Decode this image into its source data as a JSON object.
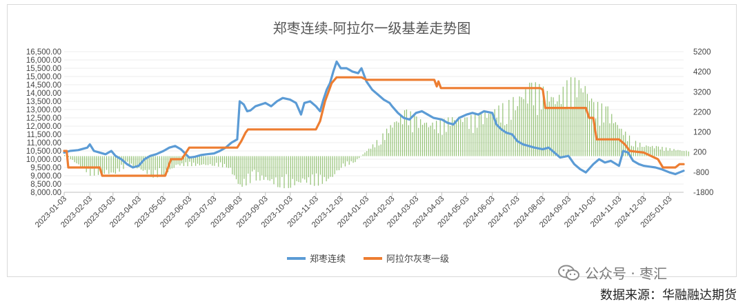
{
  "chart_data": {
    "type": "line+bar",
    "title": "郑枣连续-阿拉尔一级基差走势图",
    "left_axis": {
      "min": 8000,
      "max": 16500,
      "step": 500,
      "tick_labels": [
        "8,000.00",
        "8,500.00",
        "9,000.00",
        "9,500.00",
        "10,000.00",
        "10,500.00",
        "11,000.00",
        "11,500.00",
        "12,000.00",
        "12,500.00",
        "13,000.00",
        "13,500.00",
        "14,000.00",
        "14,500.00",
        "15,000.00",
        "15,500.00",
        "16,000.00",
        "16,500.00"
      ]
    },
    "right_axis": {
      "min": -1800,
      "max": 5200,
      "step": 1000,
      "tick_labels": [
        "-1800",
        "-800",
        "200",
        "1200",
        "2200",
        "3200",
        "4200",
        "5200"
      ]
    },
    "x_axis": {
      "start": "2023-01-03",
      "end": "2025-01-20",
      "tick_labels": [
        "2023-01-03",
        "2023-02-03",
        "2023-03-03",
        "2023-04-03",
        "2023-05-03",
        "2023-06-03",
        "2023-07-03",
        "2023-08-03",
        "2023-09-03",
        "2023-10-03",
        "2023-11-03",
        "2023-12-03",
        "2024-01-03",
        "2024-02-03",
        "2024-03-03",
        "2024-04-03",
        "2024-05-03",
        "2024-06-03",
        "2024-07-03",
        "2024-08-03",
        "2024-09-03",
        "2024-10-03",
        "2024-11-03",
        "2024-12-03",
        "2025-01-03"
      ]
    },
    "legend": {
      "position": "bottom",
      "entries": [
        "郑枣连续",
        "阿拉尔灰枣一级"
      ]
    },
    "series": [
      {
        "name": "郑枣连续",
        "axis": "left",
        "kind": "line",
        "color": "#5b9bd5",
        "points": [
          [
            "2023-01-03",
            10400
          ],
          [
            "2023-01-10",
            10500
          ],
          [
            "2023-01-20",
            10550
          ],
          [
            "2023-01-31",
            10700
          ],
          [
            "2023-02-03",
            10900
          ],
          [
            "2023-02-08",
            10500
          ],
          [
            "2023-02-15",
            10400
          ],
          [
            "2023-02-22",
            10300
          ],
          [
            "2023-03-01",
            10500
          ],
          [
            "2023-03-06",
            10200
          ],
          [
            "2023-03-13",
            10000
          ],
          [
            "2023-03-20",
            9700
          ],
          [
            "2023-03-27",
            9500
          ],
          [
            "2023-04-03",
            9600
          ],
          [
            "2023-04-10",
            10000
          ],
          [
            "2023-04-17",
            10200
          ],
          [
            "2023-04-24",
            10300
          ],
          [
            "2023-05-03",
            10500
          ],
          [
            "2023-05-10",
            10700
          ],
          [
            "2023-05-17",
            10800
          ],
          [
            "2023-05-24",
            10600
          ],
          [
            "2023-06-03",
            10100
          ],
          [
            "2023-06-10",
            10150
          ],
          [
            "2023-06-17",
            10250
          ],
          [
            "2023-06-24",
            10300
          ],
          [
            "2023-07-03",
            10350
          ],
          [
            "2023-07-10",
            10500
          ],
          [
            "2023-07-17",
            10700
          ],
          [
            "2023-07-24",
            11000
          ],
          [
            "2023-07-31",
            11200
          ],
          [
            "2023-08-03",
            13500
          ],
          [
            "2023-08-08",
            13300
          ],
          [
            "2023-08-12",
            12900
          ],
          [
            "2023-08-16",
            12950
          ],
          [
            "2023-08-22",
            13200
          ],
          [
            "2023-08-28",
            13300
          ],
          [
            "2023-09-03",
            13400
          ],
          [
            "2023-09-10",
            13200
          ],
          [
            "2023-09-17",
            13500
          ],
          [
            "2023-09-24",
            13700
          ],
          [
            "2023-10-03",
            13600
          ],
          [
            "2023-10-10",
            13400
          ],
          [
            "2023-10-16",
            12700
          ],
          [
            "2023-10-20",
            13400
          ],
          [
            "2023-10-27",
            13500
          ],
          [
            "2023-11-03",
            13200
          ],
          [
            "2023-11-08",
            12900
          ],
          [
            "2023-11-12",
            13600
          ],
          [
            "2023-11-16",
            14200
          ],
          [
            "2023-11-20",
            14600
          ],
          [
            "2023-11-24",
            15300
          ],
          [
            "2023-11-28",
            15900
          ],
          [
            "2023-12-03",
            15500
          ],
          [
            "2023-12-10",
            15500
          ],
          [
            "2023-12-17",
            15300
          ],
          [
            "2023-12-24",
            15200
          ],
          [
            "2023-12-28",
            15500
          ],
          [
            "2024-01-03",
            14700
          ],
          [
            "2024-01-10",
            14200
          ],
          [
            "2024-01-17",
            13900
          ],
          [
            "2024-01-24",
            13600
          ],
          [
            "2024-01-31",
            13400
          ],
          [
            "2024-02-03",
            13200
          ],
          [
            "2024-02-10",
            12800
          ],
          [
            "2024-02-17",
            12500
          ],
          [
            "2024-02-24",
            12400
          ],
          [
            "2024-03-03",
            12800
          ],
          [
            "2024-03-10",
            12900
          ],
          [
            "2024-03-17",
            12700
          ],
          [
            "2024-03-24",
            12500
          ],
          [
            "2024-04-03",
            12400
          ],
          [
            "2024-04-10",
            12200
          ],
          [
            "2024-04-17",
            12100
          ],
          [
            "2024-04-24",
            12500
          ],
          [
            "2024-05-03",
            12700
          ],
          [
            "2024-05-10",
            12800
          ],
          [
            "2024-05-17",
            12700
          ],
          [
            "2024-05-24",
            12900
          ],
          [
            "2024-06-03",
            12800
          ],
          [
            "2024-06-08",
            12100
          ],
          [
            "2024-06-14",
            11800
          ],
          [
            "2024-06-20",
            11600
          ],
          [
            "2024-06-27",
            11500
          ],
          [
            "2024-07-03",
            11100
          ],
          [
            "2024-07-10",
            10900
          ],
          [
            "2024-07-17",
            10800
          ],
          [
            "2024-07-24",
            10700
          ],
          [
            "2024-08-03",
            10600
          ],
          [
            "2024-08-10",
            10700
          ],
          [
            "2024-08-17",
            10400
          ],
          [
            "2024-08-24",
            10100
          ],
          [
            "2024-09-03",
            10200
          ],
          [
            "2024-09-10",
            9700
          ],
          [
            "2024-09-17",
            9400
          ],
          [
            "2024-09-24",
            9200
          ],
          [
            "2024-10-03",
            9700
          ],
          [
            "2024-10-10",
            10000
          ],
          [
            "2024-10-17",
            9800
          ],
          [
            "2024-10-24",
            9900
          ],
          [
            "2024-11-03",
            9600
          ],
          [
            "2024-11-08",
            10500
          ],
          [
            "2024-11-14",
            10400
          ],
          [
            "2024-11-20",
            9900
          ],
          [
            "2024-11-27",
            9700
          ],
          [
            "2024-12-03",
            9600
          ],
          [
            "2024-12-10",
            9550
          ],
          [
            "2024-12-17",
            9500
          ],
          [
            "2024-12-24",
            9400
          ],
          [
            "2025-01-03",
            9200
          ],
          [
            "2025-01-10",
            9100
          ],
          [
            "2025-01-15",
            9200
          ],
          [
            "2025-01-20",
            9300
          ]
        ]
      },
      {
        "name": "阿拉尔灰枣一级",
        "axis": "left",
        "kind": "line",
        "color": "#ed7d31",
        "points": [
          [
            "2023-01-03",
            10500
          ],
          [
            "2023-01-06",
            10500
          ],
          [
            "2023-01-08",
            9500
          ],
          [
            "2023-02-15",
            9500
          ],
          [
            "2023-02-18",
            9000
          ],
          [
            "2023-05-05",
            9000
          ],
          [
            "2023-05-12",
            10000
          ],
          [
            "2023-05-25",
            10000
          ],
          [
            "2023-06-03",
            10700
          ],
          [
            "2023-07-31",
            10700
          ],
          [
            "2023-08-05",
            11100
          ],
          [
            "2023-08-10",
            11600
          ],
          [
            "2023-08-13",
            11800
          ],
          [
            "2023-11-03",
            11800
          ],
          [
            "2023-11-08",
            12300
          ],
          [
            "2023-11-14",
            13500
          ],
          [
            "2023-11-22",
            14600
          ],
          [
            "2023-11-28",
            14950
          ],
          [
            "2023-12-28",
            14950
          ],
          [
            "2024-01-03",
            14800
          ],
          [
            "2024-03-25",
            14800
          ],
          [
            "2024-03-28",
            14400
          ],
          [
            "2024-03-30",
            14700
          ],
          [
            "2024-04-02",
            14300
          ],
          [
            "2024-07-31",
            14300
          ],
          [
            "2024-08-03",
            14200
          ],
          [
            "2024-08-06",
            13100
          ],
          [
            "2024-09-24",
            13100
          ],
          [
            "2024-09-28",
            12500
          ],
          [
            "2024-10-03",
            12500
          ],
          [
            "2024-10-07",
            11200
          ],
          [
            "2024-11-03",
            11200
          ],
          [
            "2024-11-10",
            10900
          ],
          [
            "2024-11-16",
            10500
          ],
          [
            "2024-12-03",
            10400
          ],
          [
            "2024-12-20",
            10000
          ],
          [
            "2024-12-26",
            9500
          ],
          [
            "2025-01-10",
            9500
          ],
          [
            "2025-01-15",
            9700
          ],
          [
            "2025-01-20",
            9700
          ]
        ]
      },
      {
        "name": "基差",
        "axis": "right",
        "kind": "bar",
        "color": "#70ad47",
        "points": [
          [
            "2023-01-03",
            100
          ],
          [
            "2023-01-20",
            -500
          ],
          [
            "2023-02-03",
            -1000
          ],
          [
            "2023-02-20",
            -900
          ],
          [
            "2023-03-03",
            -1000
          ],
          [
            "2023-03-20",
            -500
          ],
          [
            "2023-04-03",
            -700
          ],
          [
            "2023-04-20",
            -1100
          ],
          [
            "2023-05-03",
            -1000
          ],
          [
            "2023-05-20",
            -500
          ],
          [
            "2023-06-03",
            -500
          ],
          [
            "2023-06-20",
            -500
          ],
          [
            "2023-07-03",
            -500
          ],
          [
            "2023-07-20",
            -600
          ],
          [
            "2023-08-03",
            -1700
          ],
          [
            "2023-08-20",
            -1200
          ],
          [
            "2023-09-03",
            -1300
          ],
          [
            "2023-09-20",
            -1600
          ],
          [
            "2023-10-03",
            -1600
          ],
          [
            "2023-10-20",
            -1400
          ],
          [
            "2023-11-03",
            -1500
          ],
          [
            "2023-11-20",
            -1300
          ],
          [
            "2023-12-03",
            -600
          ],
          [
            "2023-12-20",
            -300
          ],
          [
            "2024-01-03",
            300
          ],
          [
            "2024-01-20",
            1000
          ],
          [
            "2024-02-03",
            1800
          ],
          [
            "2024-02-20",
            2400
          ],
          [
            "2024-03-03",
            2000
          ],
          [
            "2024-03-20",
            1800
          ],
          [
            "2024-04-03",
            1800
          ],
          [
            "2024-04-20",
            2200
          ],
          [
            "2024-05-03",
            2000
          ],
          [
            "2024-05-20",
            2200
          ],
          [
            "2024-06-03",
            2500
          ],
          [
            "2024-06-20",
            2700
          ],
          [
            "2024-07-03",
            3200
          ],
          [
            "2024-07-20",
            3800
          ],
          [
            "2024-08-03",
            3500
          ],
          [
            "2024-08-20",
            3200
          ],
          [
            "2024-09-03",
            3900
          ],
          [
            "2024-09-20",
            4100
          ],
          [
            "2024-10-03",
            2800
          ],
          [
            "2024-10-20",
            2500
          ],
          [
            "2024-11-03",
            1600
          ],
          [
            "2024-11-20",
            800
          ],
          [
            "2024-12-03",
            600
          ],
          [
            "2024-12-20",
            500
          ],
          [
            "2025-01-03",
            400
          ],
          [
            "2025-01-20",
            300
          ]
        ]
      }
    ]
  },
  "watermark": {
    "text": "公众号 · 枣汇"
  },
  "source": {
    "text": "数据来源：华融融达期货"
  }
}
